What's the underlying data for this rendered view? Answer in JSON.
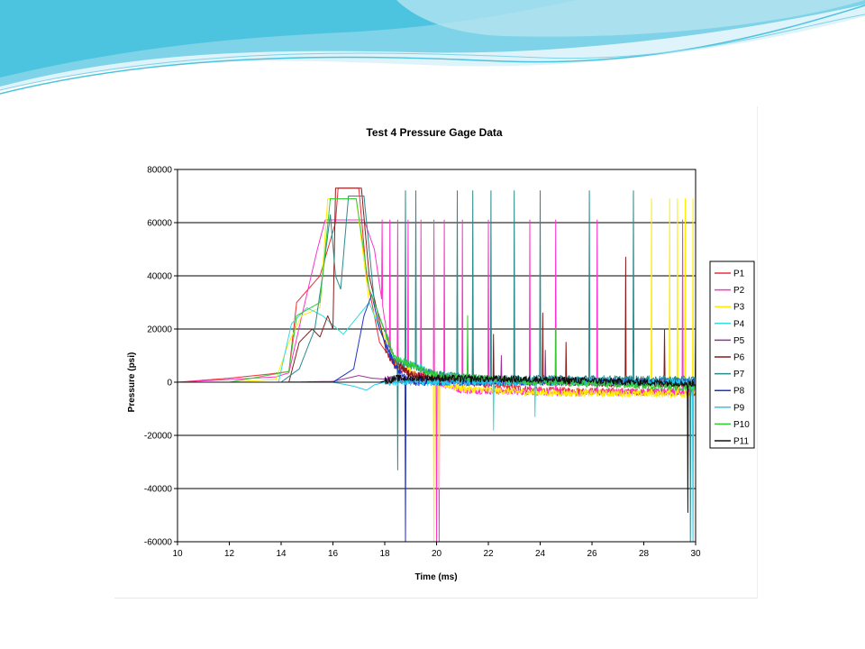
{
  "slide": {
    "background": "#ffffff",
    "wave_colors": [
      "#7fd3e8",
      "#b9e6f2",
      "#4cc3df",
      "#dff4fa"
    ]
  },
  "chart_data": {
    "type": "line",
    "title": "Test 4 Pressure Gage Data",
    "xlabel": "Time (ms)",
    "ylabel": "Pressure (psi)",
    "xlim": [
      10,
      30
    ],
    "ylim": [
      -60000,
      80000
    ],
    "x_ticks": [
      "10",
      "12",
      "14",
      "16",
      "18",
      "20",
      "22",
      "24",
      "26",
      "28",
      "30"
    ],
    "y_ticks": [
      "80000",
      "60000",
      "40000",
      "20000",
      "0",
      "-20000",
      "-40000",
      "-60000"
    ],
    "grid": "horizontal",
    "legend_position": "right",
    "series": [
      {
        "name": "P1",
        "color": "#e8303a",
        "points": [
          [
            10,
            0
          ],
          [
            12,
            1500
          ],
          [
            13.5,
            3000
          ],
          [
            14.3,
            4000
          ],
          [
            14.6,
            30000
          ],
          [
            15.5,
            40000
          ],
          [
            16.1,
            60000
          ],
          [
            16.2,
            73000
          ],
          [
            17.0,
            73000
          ],
          [
            17.3,
            40000
          ],
          [
            17.8,
            15000
          ],
          [
            18.5,
            5000
          ],
          [
            20,
            1000
          ],
          [
            24,
            -3000
          ],
          [
            30,
            -4000
          ]
        ],
        "spikes": []
      },
      {
        "name": "P2",
        "color": "#ff33cc",
        "points": [
          [
            10,
            0
          ],
          [
            12,
            1000
          ],
          [
            13.8,
            2000
          ],
          [
            14.3,
            3500
          ],
          [
            14.8,
            25000
          ],
          [
            15.4,
            50000
          ],
          [
            15.7,
            61000
          ],
          [
            17.2,
            61000
          ],
          [
            17.6,
            50000
          ],
          [
            18.2,
            10000
          ],
          [
            19,
            3000
          ],
          [
            21,
            -3000
          ],
          [
            25,
            -4000
          ],
          [
            30,
            -3500
          ]
        ],
        "spikes": [
          [
            17.9,
            61000
          ],
          [
            18.2,
            61000
          ],
          [
            18.5,
            61000
          ],
          [
            18.9,
            61000
          ],
          [
            19.4,
            61000
          ],
          [
            19.9,
            61000
          ],
          [
            20.0,
            -60000
          ],
          [
            20.1,
            -60000
          ],
          [
            20.3,
            61000
          ],
          [
            21.0,
            61000
          ],
          [
            22.0,
            61000
          ],
          [
            23.6,
            61000
          ],
          [
            24.6,
            61000
          ],
          [
            26.2,
            61000
          ],
          [
            29.5,
            61000
          ]
        ]
      },
      {
        "name": "P3",
        "color": "#ffee00",
        "points": [
          [
            10,
            0
          ],
          [
            12,
            0
          ],
          [
            13.8,
            1000
          ],
          [
            14.3,
            15000
          ],
          [
            14.8,
            25000
          ],
          [
            15.5,
            28000
          ],
          [
            15.8,
            69000
          ],
          [
            16.9,
            69000
          ],
          [
            17.4,
            30000
          ],
          [
            18.4,
            8000
          ],
          [
            19.5,
            1000
          ],
          [
            21,
            -2500
          ],
          [
            24,
            -4000
          ],
          [
            30,
            -4500
          ]
        ],
        "spikes": [
          [
            19.9,
            -60000
          ],
          [
            20.1,
            -40000
          ],
          [
            28.3,
            69000
          ],
          [
            29.0,
            69000
          ],
          [
            29.3,
            69000
          ],
          [
            29.6,
            69000
          ],
          [
            29.9,
            69000
          ]
        ]
      },
      {
        "name": "P4",
        "color": "#33dddd",
        "points": [
          [
            10,
            0
          ],
          [
            13.9,
            0
          ],
          [
            14.4,
            22000
          ],
          [
            15.0,
            28000
          ],
          [
            15.6,
            25000
          ],
          [
            16.4,
            18000
          ],
          [
            17.4,
            30000
          ],
          [
            18.2,
            10000
          ],
          [
            20,
            3000
          ],
          [
            22,
            1000
          ],
          [
            30,
            0
          ]
        ],
        "spikes": [
          [
            23.8,
            -13000
          ],
          [
            22.2,
            -18000
          ]
        ]
      },
      {
        "name": "P5",
        "color": "#993399",
        "points": [
          [
            10,
            0
          ],
          [
            14,
            0
          ],
          [
            16,
            300
          ],
          [
            17,
            2500
          ],
          [
            17.5,
            1500
          ],
          [
            19,
            500
          ],
          [
            30,
            300
          ]
        ],
        "spikes": [
          [
            22.5,
            10000
          ],
          [
            24.2,
            12000
          ]
        ]
      },
      {
        "name": "P6",
        "color": "#8b1a1a",
        "points": [
          [
            10,
            0
          ],
          [
            14.3,
            0
          ],
          [
            14.7,
            15000
          ],
          [
            15.2,
            20000
          ],
          [
            15.5,
            17000
          ],
          [
            15.8,
            25000
          ],
          [
            16.0,
            20000
          ],
          [
            16.1,
            73000
          ],
          [
            17.1,
            73000
          ],
          [
            17.4,
            40000
          ],
          [
            18.1,
            10000
          ],
          [
            19,
            3000
          ],
          [
            21,
            500
          ],
          [
            30,
            -1000
          ]
        ],
        "spikes": [
          [
            21.4,
            25000
          ],
          [
            22.2,
            18000
          ],
          [
            24.1,
            26000
          ],
          [
            25.0,
            15000
          ],
          [
            27.3,
            47000
          ],
          [
            28.8,
            20000
          ],
          [
            30.0,
            24000
          ]
        ]
      },
      {
        "name": "P7",
        "color": "#2a8a8a",
        "points": [
          [
            10,
            0
          ],
          [
            14,
            0
          ],
          [
            14.7,
            5000
          ],
          [
            15.3,
            20000
          ],
          [
            15.6,
            40000
          ],
          [
            15.9,
            63000
          ],
          [
            16.1,
            40000
          ],
          [
            16.3,
            35000
          ],
          [
            16.6,
            70000
          ],
          [
            17.2,
            70000
          ],
          [
            17.6,
            30000
          ],
          [
            18.4,
            8000
          ],
          [
            20,
            3000
          ],
          [
            22,
            1500
          ],
          [
            30,
            1000
          ]
        ],
        "spikes": [
          [
            18.5,
            -33000
          ],
          [
            18.8,
            72000
          ],
          [
            19.2,
            72000
          ],
          [
            20.8,
            72000
          ],
          [
            21.4,
            72000
          ],
          [
            22.1,
            72000
          ],
          [
            23.0,
            72000
          ],
          [
            24.0,
            72000
          ],
          [
            25.9,
            72000
          ],
          [
            27.6,
            72000
          ],
          [
            29.8,
            -60000
          ]
        ]
      },
      {
        "name": "P8",
        "color": "#2233cc",
        "points": [
          [
            10,
            0
          ],
          [
            16,
            0
          ],
          [
            16.8,
            5000
          ],
          [
            17.2,
            25000
          ],
          [
            17.5,
            33000
          ],
          [
            17.8,
            20000
          ],
          [
            18.4,
            6000
          ],
          [
            19,
            0
          ],
          [
            30,
            0
          ]
        ],
        "spikes": [
          [
            18.8,
            -60000
          ]
        ]
      },
      {
        "name": "P9",
        "color": "#22ccee",
        "points": [
          [
            10,
            0
          ],
          [
            16,
            0
          ],
          [
            16.8,
            -1500
          ],
          [
            17.3,
            -3000
          ],
          [
            17.6,
            -1000
          ],
          [
            18,
            0
          ],
          [
            30,
            0
          ]
        ],
        "spikes": [
          [
            29.9,
            -60000
          ]
        ]
      },
      {
        "name": "P10",
        "color": "#33cc33",
        "points": [
          [
            10,
            0
          ],
          [
            12,
            0
          ],
          [
            14.3,
            4000
          ],
          [
            14.6,
            25000
          ],
          [
            15.5,
            30000
          ],
          [
            15.9,
            69000
          ],
          [
            16.9,
            69000
          ],
          [
            17.4,
            35000
          ],
          [
            18.4,
            9000
          ],
          [
            20,
            2500
          ],
          [
            24,
            0
          ],
          [
            30,
            -2000
          ]
        ],
        "spikes": [
          [
            21.2,
            25000
          ],
          [
            24.6,
            20000
          ]
        ]
      },
      {
        "name": "P11",
        "color": "#111111",
        "points": [
          [
            10,
            0
          ],
          [
            17.8,
            0
          ],
          [
            18.5,
            1500
          ],
          [
            20,
            1500
          ],
          [
            24,
            1000
          ],
          [
            30,
            -500
          ]
        ],
        "spikes": [
          [
            29.7,
            -49000
          ]
        ]
      }
    ]
  }
}
